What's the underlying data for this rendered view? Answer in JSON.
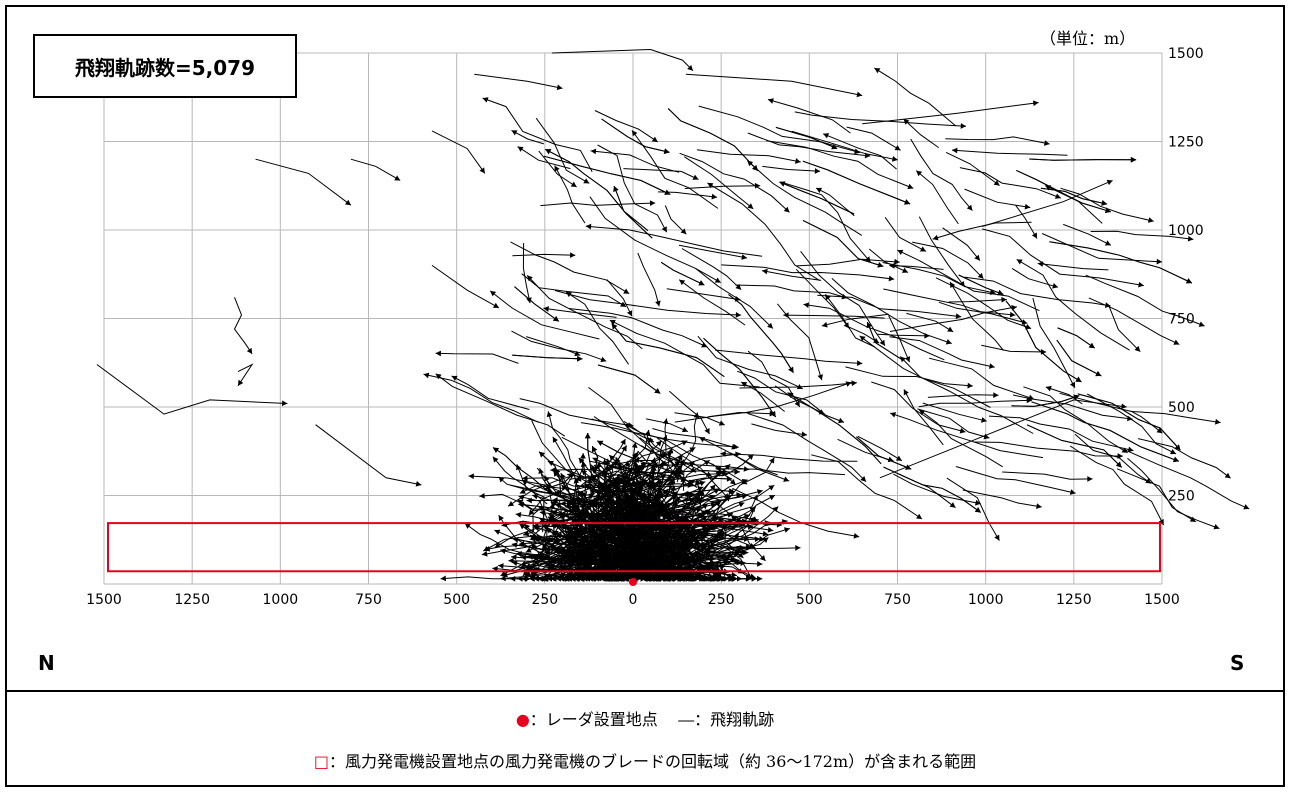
{
  "chart_data": {
    "type": "line",
    "title": "",
    "count_label": "飛翔軌跡数=5,079",
    "unit_label": "（単位：m）",
    "x_direction_left": "N",
    "x_direction_right": "S",
    "x_ticks": [
      "1500",
      "1250",
      "1000",
      "750",
      "500",
      "250",
      "0",
      "250",
      "500",
      "750",
      "1000",
      "1250",
      "1500"
    ],
    "x_range": [
      -1500,
      1500
    ],
    "y_ticks": [
      "250",
      "500",
      "750",
      "1000",
      "1250",
      "1500"
    ],
    "y_range": [
      0,
      1500
    ],
    "grid": true,
    "radar_point": {
      "x": 0,
      "y": 0,
      "color": "#e8001c"
    },
    "blade_rotation_zone": {
      "x_range": [
        -1500,
        1500
      ],
      "y_range": [
        36,
        172
      ],
      "color": "#e8001c"
    },
    "track_color": "#000000",
    "representative_tracks": [
      {
        "name": "track",
        "points": [
          [
            -1520,
            620
          ],
          [
            -1330,
            480
          ],
          [
            -1200,
            520
          ],
          [
            -980,
            510
          ]
        ]
      },
      {
        "name": "track",
        "points": [
          [
            -1070,
            1200
          ],
          [
            -920,
            1160
          ],
          [
            -800,
            1070
          ]
        ]
      },
      {
        "name": "track",
        "points": [
          [
            -1130,
            810
          ],
          [
            -1110,
            760
          ],
          [
            -1130,
            720
          ],
          [
            -1100,
            680
          ],
          [
            -1080,
            650
          ]
        ]
      },
      {
        "name": "track",
        "points": [
          [
            -1120,
            600
          ],
          [
            -1080,
            620
          ],
          [
            -1120,
            560
          ]
        ]
      },
      {
        "name": "track",
        "points": [
          [
            -800,
            1200
          ],
          [
            -730,
            1180
          ],
          [
            -660,
            1140
          ]
        ]
      },
      {
        "name": "track",
        "points": [
          [
            -570,
            1280
          ],
          [
            -470,
            1230
          ],
          [
            -420,
            1160
          ]
        ]
      },
      {
        "name": "track",
        "points": [
          [
            -570,
            900
          ],
          [
            -470,
            830
          ],
          [
            -380,
            780
          ]
        ]
      },
      {
        "name": "track",
        "points": [
          [
            -450,
            1440
          ],
          [
            -300,
            1420
          ],
          [
            -200,
            1400
          ]
        ]
      },
      {
        "name": "track",
        "points": [
          [
            -230,
            1500
          ],
          [
            50,
            1510
          ],
          [
            140,
            1480
          ],
          [
            170,
            1450
          ]
        ]
      },
      {
        "name": "track",
        "points": [
          [
            150,
            1440
          ],
          [
            450,
            1420
          ],
          [
            650,
            1380
          ]
        ]
      },
      {
        "name": "track",
        "points": [
          [
            650,
            1300
          ],
          [
            920,
            1330
          ],
          [
            1150,
            1360
          ]
        ]
      },
      {
        "name": "track",
        "points": [
          [
            1160,
            990
          ],
          [
            1320,
            920
          ],
          [
            1500,
            910
          ]
        ]
      },
      {
        "name": "track",
        "points": [
          [
            990,
            1010
          ],
          [
            1220,
            1080
          ],
          [
            1360,
            1140
          ]
        ]
      },
      {
        "name": "track",
        "points": [
          [
            -900,
            450
          ],
          [
            -700,
            300
          ],
          [
            -600,
            280
          ]
        ]
      },
      {
        "name": "track",
        "points": [
          [
            700,
            300
          ],
          [
            1000,
            420
          ],
          [
            1250,
            520
          ],
          [
            1400,
            500
          ]
        ]
      },
      {
        "name": "track",
        "points": [
          [
            300,
            40
          ],
          [
            330,
            25
          ],
          [
            320,
            10
          ]
        ]
      }
    ]
  },
  "legend": {
    "radar_symbol": "●",
    "radar_label": "：レーダ設置地点",
    "track_symbol": "―",
    "track_label": "：飛翔軌跡",
    "zone_symbol": "□",
    "zone_label": "：風力発電機設置地点の風力発電機のブレードの回転域（約 36～172m）が含まれる範囲"
  }
}
